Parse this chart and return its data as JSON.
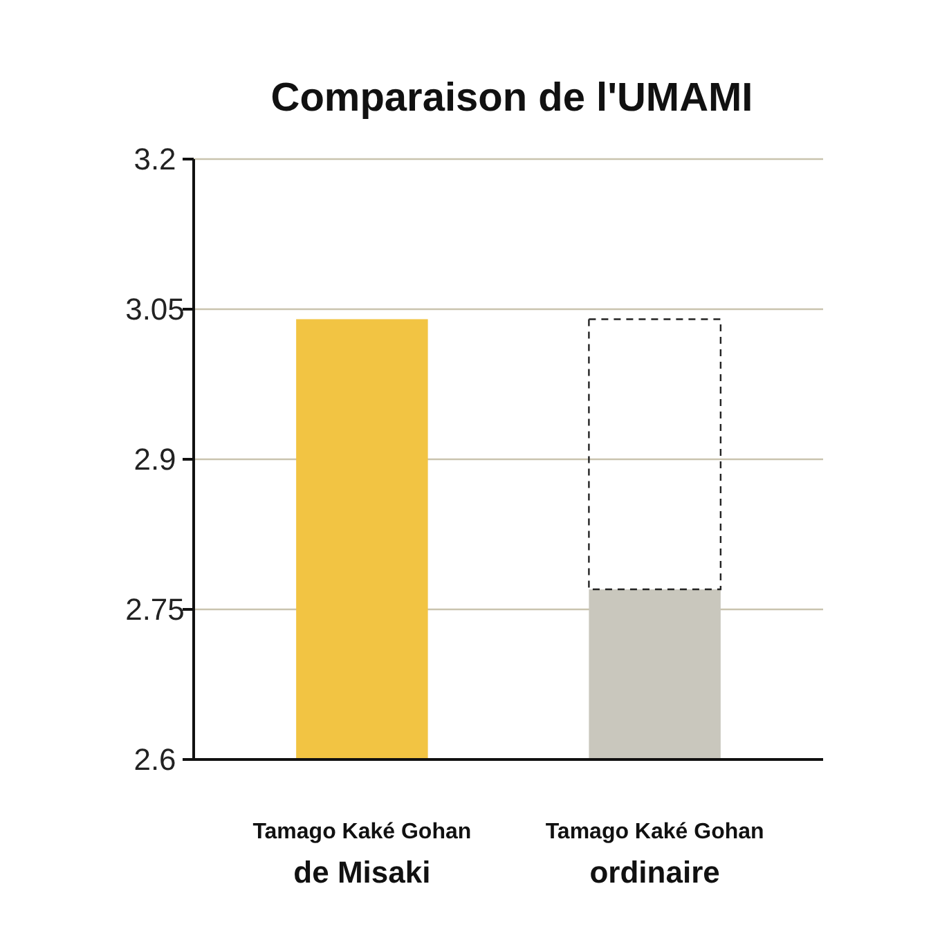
{
  "chart_data": {
    "type": "bar",
    "title": "Comparaison de l'UMAMI",
    "categories": [
      "Tamago Kaké Gohan\nde Misaki",
      "Tamago Kaké Gohan\nordinaire"
    ],
    "values": [
      3.04,
      2.77
    ],
    "colors": [
      "#f2c443",
      "#c9c7bd"
    ],
    "ylim": [
      2.6,
      3.2
    ],
    "yticks": [
      2.6,
      2.75,
      2.9,
      3.05,
      3.2
    ],
    "grid": "y"
  }
}
